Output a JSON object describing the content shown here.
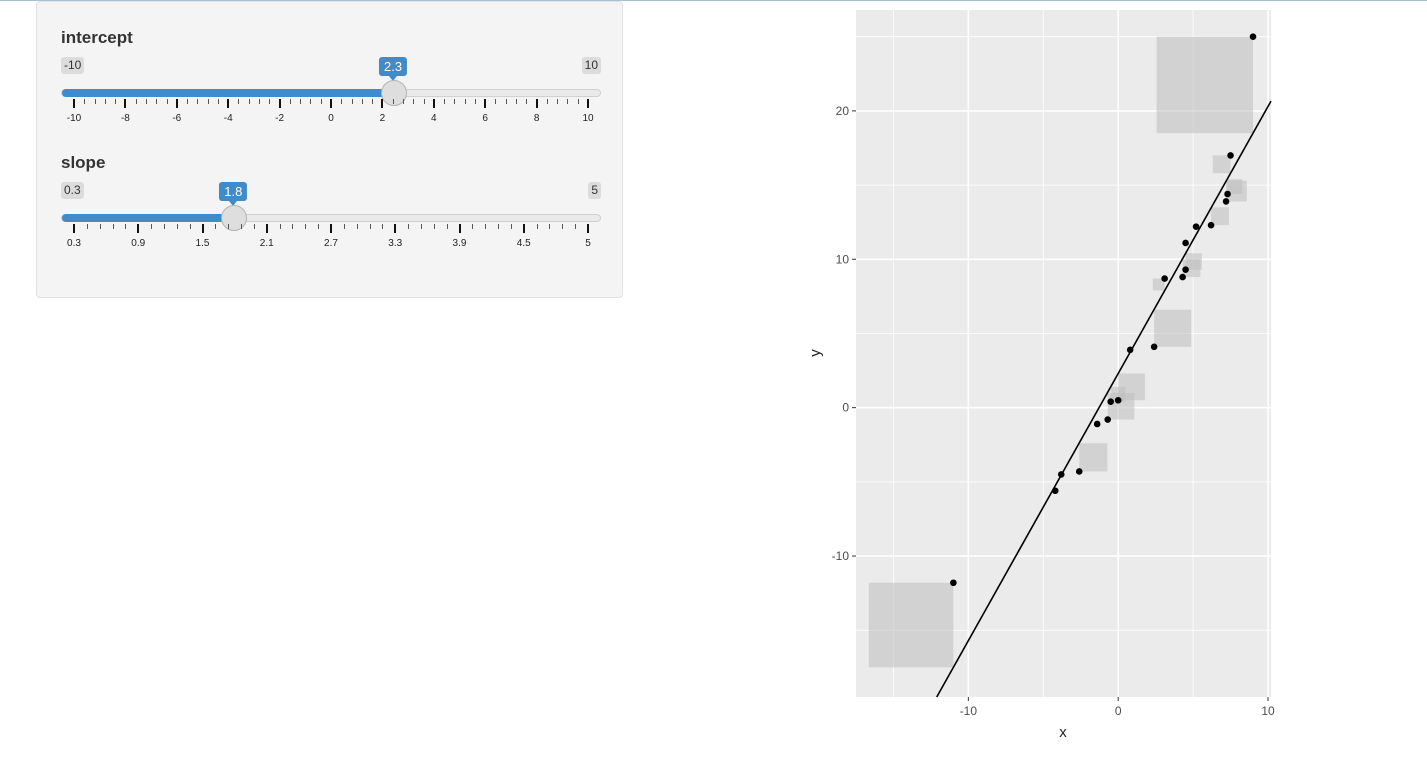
{
  "sliders": {
    "intercept": {
      "label": "intercept",
      "min": -10,
      "max": 10,
      "value": 2.3,
      "min_label": "-10",
      "max_label": "10",
      "value_label": "2.3",
      "ticks": [
        "-10",
        "-8",
        "-6",
        "-4",
        "-2",
        "0",
        "2",
        "4",
        "6",
        "8",
        "10"
      ]
    },
    "slope": {
      "label": "slope",
      "min": 0.3,
      "max": 5,
      "value": 1.8,
      "min_label": "0.3",
      "max_label": "5",
      "value_label": "1.8",
      "ticks": [
        "0.3",
        "0.9",
        "1.5",
        "2.1",
        "2.7",
        "3.3",
        "3.9",
        "4.5",
        "5"
      ]
    }
  },
  "chart_data": {
    "type": "scatter",
    "xlabel": "x",
    "ylabel": "y",
    "xlim": [
      -17.5,
      10.2
    ],
    "ylim": [
      -19.5,
      26.8
    ],
    "x_ticks": [
      -10,
      0,
      10
    ],
    "y_ticks": [
      -10,
      0,
      10,
      20
    ],
    "grid": true,
    "points": [
      {
        "x": 9.0,
        "y": 25.0
      },
      {
        "x": 7.5,
        "y": 17.0
      },
      {
        "x": 7.3,
        "y": 14.4
      },
      {
        "x": 7.2,
        "y": 13.9
      },
      {
        "x": 6.2,
        "y": 12.3
      },
      {
        "x": 5.2,
        "y": 12.2
      },
      {
        "x": 4.5,
        "y": 11.1
      },
      {
        "x": 4.5,
        "y": 9.3
      },
      {
        "x": 4.3,
        "y": 8.8
      },
      {
        "x": 3.1,
        "y": 8.7
      },
      {
        "x": 2.4,
        "y": 4.1
      },
      {
        "x": 0.8,
        "y": 3.9
      },
      {
        "x": 0.0,
        "y": 0.5
      },
      {
        "x": -0.5,
        "y": 0.4
      },
      {
        "x": -0.7,
        "y": -0.8
      },
      {
        "x": -1.4,
        "y": -1.1
      },
      {
        "x": -2.6,
        "y": -4.3
      },
      {
        "x": -3.8,
        "y": -4.5
      },
      {
        "x": -4.2,
        "y": -5.6
      },
      {
        "x": -11.0,
        "y": -11.8
      }
    ],
    "residual_squares": [
      {
        "x": 9.0,
        "y": 25.0,
        "fitted": 18.5
      },
      {
        "x": 7.5,
        "y": 17.0,
        "fitted": 15.8
      },
      {
        "x": 7.3,
        "y": 14.4,
        "fitted": 15.4
      },
      {
        "x": 7.2,
        "y": 13.9,
        "fitted": 15.3
      },
      {
        "x": 6.2,
        "y": 12.3,
        "fitted": 13.5
      },
      {
        "x": 4.5,
        "y": 9.3,
        "fitted": 10.4
      },
      {
        "x": 4.3,
        "y": 8.8,
        "fitted": 10.0
      },
      {
        "x": 3.1,
        "y": 8.7,
        "fitted": 7.9
      },
      {
        "x": 2.4,
        "y": 4.1,
        "fitted": 6.6
      },
      {
        "x": 0.0,
        "y": 0.5,
        "fitted": 2.3
      },
      {
        "x": -0.5,
        "y": 0.4,
        "fitted": 1.4
      },
      {
        "x": -0.7,
        "y": -0.8,
        "fitted": 1.0
      },
      {
        "x": -2.6,
        "y": -4.3,
        "fitted": -2.4
      },
      {
        "x": -11.0,
        "y": -11.8,
        "fitted": -17.5
      }
    ],
    "fit_line": {
      "intercept": 2.3,
      "slope": 1.8
    },
    "colors": {
      "panel": "#ebebeb",
      "grid": "#ffffff",
      "point": "#000000",
      "square": "#bdbdbd"
    }
  }
}
